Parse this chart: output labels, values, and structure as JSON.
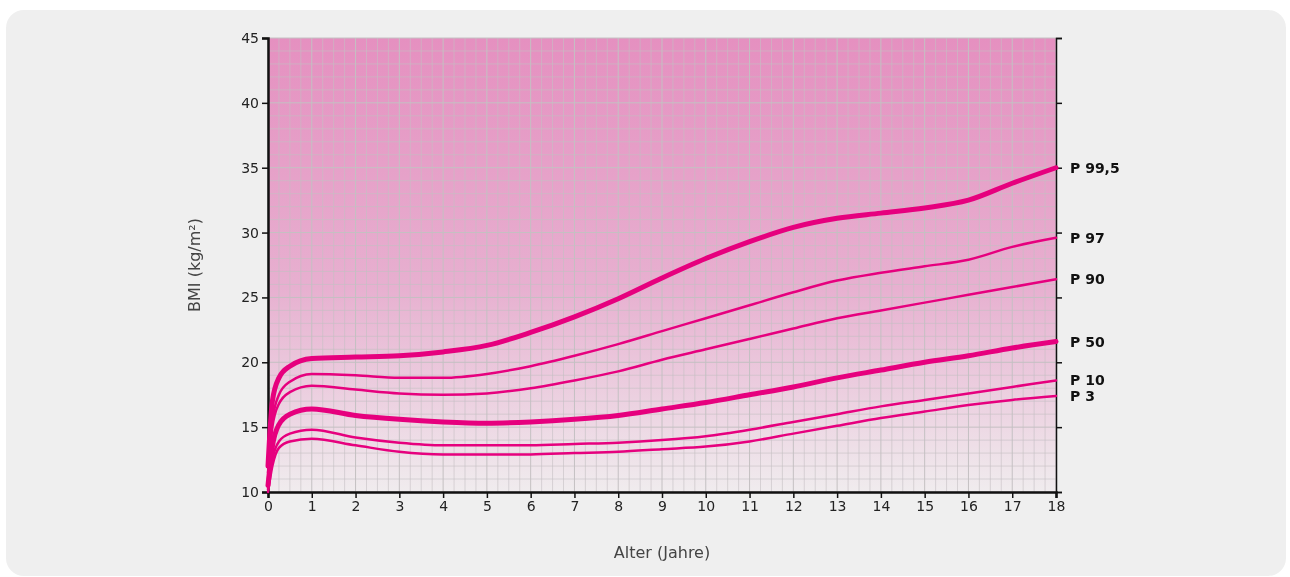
{
  "chart_data": {
    "type": "line",
    "xlabel": "Alter (Jahre)",
    "ylabel": "BMI (kg/m²)",
    "xlim": [
      0,
      18
    ],
    "ylim": [
      10,
      45
    ],
    "xticks": [
      0,
      1,
      2,
      3,
      4,
      5,
      6,
      7,
      8,
      9,
      10,
      11,
      12,
      13,
      14,
      15,
      16,
      17,
      18
    ],
    "yticks": [
      10,
      15,
      20,
      25,
      30,
      35,
      40,
      45
    ],
    "grid": true,
    "marker": "none",
    "line_style": "solid",
    "x": [
      0,
      0.1,
      0.25,
      0.5,
      1,
      2,
      3,
      4,
      5,
      6,
      7,
      8,
      9,
      10,
      11,
      12,
      13,
      14,
      15,
      16,
      17,
      18
    ],
    "series": [
      {
        "name": "P 99,5",
        "color": "#e6007e",
        "values": [
          12,
          17,
          18.8,
          19.7,
          20.3,
          20.4,
          20.5,
          20.8,
          21.3,
          22.3,
          23.5,
          24.9,
          26.5,
          28.0,
          29.3,
          30.4,
          31.1,
          31.5,
          31.9,
          32.5,
          33.8,
          35.0
        ]
      },
      {
        "name": "P 97",
        "color": "#e6007e",
        "values": [
          11.5,
          15.5,
          17.5,
          18.5,
          19.1,
          19.0,
          18.8,
          18.8,
          19.1,
          19.7,
          20.5,
          21.4,
          22.4,
          23.4,
          24.4,
          25.4,
          26.3,
          26.9,
          27.4,
          27.9,
          28.9,
          29.6
        ]
      },
      {
        "name": "P 90",
        "color": "#e6007e",
        "values": [
          11,
          15,
          16.8,
          17.7,
          18.2,
          17.9,
          17.6,
          17.5,
          17.6,
          18.0,
          18.6,
          19.3,
          20.2,
          21.0,
          21.8,
          22.6,
          23.4,
          24.0,
          24.6,
          25.2,
          25.8,
          26.4
        ]
      },
      {
        "name": "P 50",
        "color": "#e6007e",
        "values": [
          10.5,
          13.5,
          15.2,
          16.0,
          16.4,
          15.9,
          15.6,
          15.4,
          15.3,
          15.4,
          15.6,
          15.9,
          16.4,
          16.9,
          17.5,
          18.1,
          18.8,
          19.4,
          20.0,
          20.5,
          21.1,
          21.6
        ]
      },
      {
        "name": "P 10",
        "color": "#e6007e",
        "values": [
          10.2,
          12.5,
          13.9,
          14.5,
          14.8,
          14.2,
          13.8,
          13.6,
          13.6,
          13.6,
          13.7,
          13.8,
          14.0,
          14.3,
          14.8,
          15.4,
          16.0,
          16.6,
          17.1,
          17.6,
          18.1,
          18.6
        ]
      },
      {
        "name": "P 3",
        "color": "#e6007e",
        "values": [
          10,
          12,
          13.4,
          13.9,
          14.1,
          13.6,
          13.1,
          12.9,
          12.9,
          12.9,
          13.0,
          13.1,
          13.3,
          13.5,
          13.9,
          14.5,
          15.1,
          15.7,
          16.2,
          16.7,
          17.1,
          17.4
        ]
      }
    ]
  }
}
